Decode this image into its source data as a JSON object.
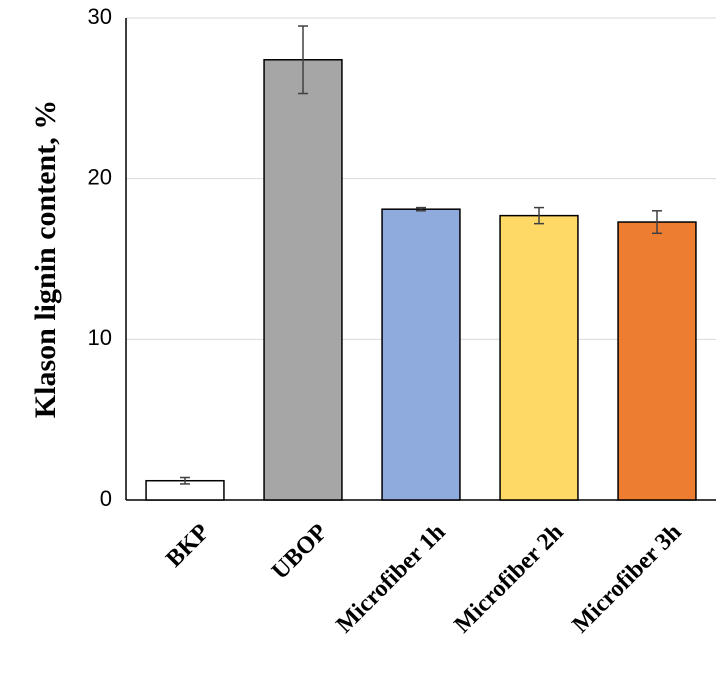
{
  "chart_data": {
    "type": "bar",
    "y_label": "Klason lignin content, %",
    "categories": [
      "BKP",
      "UBOP",
      "Microfiber 1h",
      "Microfiber 2h",
      "Microfiber 3h"
    ],
    "values": [
      1.2,
      27.4,
      18.1,
      17.7,
      17.3
    ],
    "errors": [
      0.2,
      2.1,
      0.1,
      0.5,
      0.7
    ],
    "colors": [
      "#ffffff",
      "#a6a6a6",
      "#8faadc",
      "#ffd966",
      "#ed7d31"
    ],
    "ylim": [
      0,
      30
    ],
    "yticks": [
      0,
      10,
      20,
      30
    ],
    "grid": true
  }
}
